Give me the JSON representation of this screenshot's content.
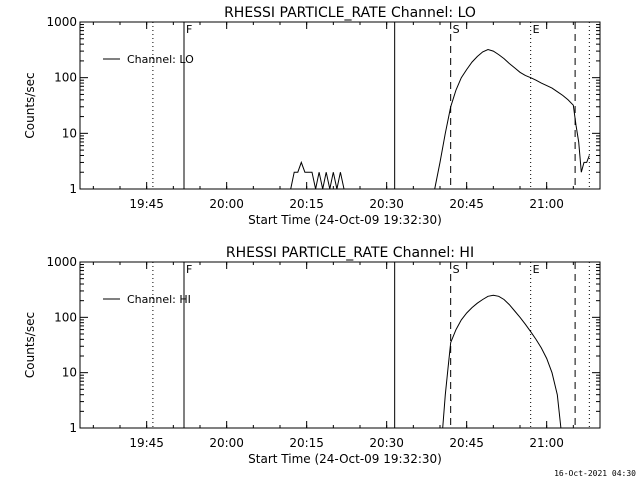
{
  "footer": {
    "timestamp": "16-Oct-2021 04:30"
  },
  "chart_data": [
    {
      "type": "line",
      "title": "RHESSI PARTICLE_RATE Channel: LO",
      "xlabel": "Start Time (24-Oct-09 19:32:30)",
      "ylabel": "Counts/sec",
      "y_scale": "log",
      "ylim": [
        1,
        1000
      ],
      "xlim": [
        "19:32:30",
        "21:10:00"
      ],
      "x_ticks": [
        "19:45",
        "20:00",
        "20:15",
        "20:30",
        "20:45",
        "21:00"
      ],
      "y_ticks": [
        "1",
        "10",
        "100",
        "1000"
      ],
      "grid": false,
      "legend": {
        "position": "top-left",
        "entries": [
          "Channel: LO"
        ]
      },
      "markers": [
        {
          "time": "19:46:10",
          "style": "dotted",
          "label": ""
        },
        {
          "time": "19:52:00",
          "style": "solid",
          "label": "F"
        },
        {
          "time": "20:31:30",
          "style": "solid",
          "label": ""
        },
        {
          "time": "20:42:00",
          "style": "dashed",
          "label": "S"
        },
        {
          "time": "20:57:00",
          "style": "dotted",
          "label": "E"
        },
        {
          "time": "21:05:20",
          "style": "dashed",
          "label": ""
        },
        {
          "time": "21:08:00",
          "style": "dotted",
          "label": ""
        }
      ],
      "series": [
        {
          "name": "Channel: LO",
          "x": [
            "20:12:00",
            "20:12:40",
            "20:13:20",
            "20:14:00",
            "20:14:40",
            "20:15:20",
            "20:16:00",
            "20:16:40",
            "20:17:20",
            "20:18:00",
            "20:18:40",
            "20:19:20",
            "20:20:00",
            "20:20:40",
            "20:21:20",
            "20:22:00",
            "20:39:00",
            "20:40:00",
            "20:41:00",
            "20:42:00",
            "20:43:00",
            "20:44:00",
            "20:45:00",
            "20:46:00",
            "20:47:00",
            "20:48:00",
            "20:49:00",
            "20:50:00",
            "20:51:00",
            "20:52:00",
            "20:53:00",
            "20:54:00",
            "20:55:00",
            "20:56:00",
            "20:57:00",
            "20:58:00",
            "20:59:00",
            "21:00:00",
            "21:01:00",
            "21:02:00",
            "21:03:00",
            "21:04:00",
            "21:05:00",
            "21:05:30",
            "21:06:00",
            "21:06:30",
            "21:07:00",
            "21:07:30",
            "21:08:00"
          ],
          "y": [
            1,
            2,
            2,
            3,
            2,
            2,
            2,
            1,
            2,
            1,
            2,
            1,
            2,
            1,
            2,
            1,
            1,
            3,
            10,
            30,
            60,
            100,
            140,
            190,
            240,
            290,
            320,
            300,
            260,
            220,
            180,
            150,
            125,
            110,
            100,
            90,
            80,
            72,
            65,
            56,
            48,
            40,
            32,
            14,
            7,
            2,
            3,
            3,
            4
          ]
        }
      ]
    },
    {
      "type": "line",
      "title": "RHESSI PARTICLE_RATE Channel: HI",
      "xlabel": "Start Time (24-Oct-09 19:32:30)",
      "ylabel": "Counts/sec",
      "y_scale": "log",
      "ylim": [
        1,
        1000
      ],
      "xlim": [
        "19:32:30",
        "21:10:00"
      ],
      "x_ticks": [
        "19:45",
        "20:00",
        "20:15",
        "20:30",
        "20:45",
        "21:00"
      ],
      "y_ticks": [
        "1",
        "10",
        "100",
        "1000"
      ],
      "grid": false,
      "legend": {
        "position": "top-left",
        "entries": [
          "Channel: HI"
        ]
      },
      "markers": [
        {
          "time": "19:46:10",
          "style": "dotted",
          "label": ""
        },
        {
          "time": "19:52:00",
          "style": "solid",
          "label": "F"
        },
        {
          "time": "20:31:30",
          "style": "solid",
          "label": ""
        },
        {
          "time": "20:42:00",
          "style": "dashed",
          "label": "S"
        },
        {
          "time": "20:57:00",
          "style": "dotted",
          "label": "E"
        },
        {
          "time": "21:05:20",
          "style": "dashed",
          "label": ""
        },
        {
          "time": "21:08:00",
          "style": "dotted",
          "label": ""
        }
      ],
      "series": [
        {
          "name": "Channel: HI",
          "x": [
            "20:40:30",
            "20:41:00",
            "20:41:30",
            "20:42:00",
            "20:43:00",
            "20:44:00",
            "20:45:00",
            "20:46:00",
            "20:47:00",
            "20:48:00",
            "20:49:00",
            "20:50:00",
            "20:51:00",
            "20:52:00",
            "20:53:00",
            "20:54:00",
            "20:55:00",
            "20:56:00",
            "20:57:00",
            "20:58:00",
            "20:59:00",
            "21:00:00",
            "21:01:00",
            "21:02:00",
            "21:02:40"
          ],
          "y": [
            1,
            4,
            12,
            35,
            60,
            90,
            120,
            150,
            180,
            210,
            240,
            250,
            240,
            210,
            170,
            130,
            100,
            75,
            55,
            40,
            28,
            18,
            10,
            4,
            1
          ]
        }
      ]
    }
  ]
}
